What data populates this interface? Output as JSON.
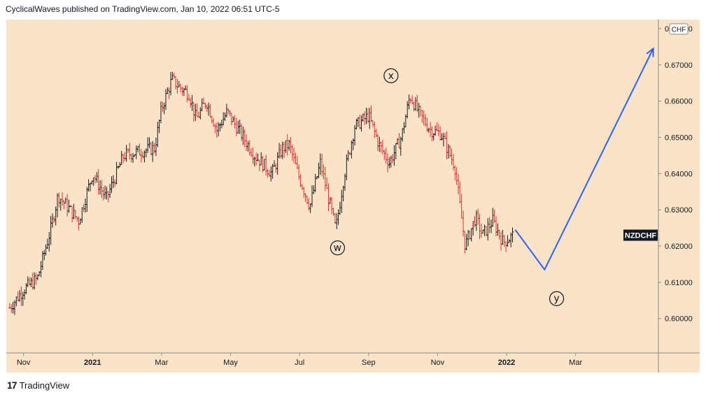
{
  "header": {
    "text": "CyclicalWaves published on TradingView.com, Jan 10, 2022 06:51 UTC-5"
  },
  "footer": {
    "logo_mark": "17",
    "logo_text": "TradingView"
  },
  "colors": {
    "background": "#fbe3c7",
    "up": "#131722",
    "down": "#d32f2f",
    "projection": "#2962ff",
    "axis_bg": "#ffffff"
  },
  "symbol_badge": "NZDCHF",
  "currency_badge": "CHF",
  "chart_data": {
    "type": "ohlc",
    "symbol": "NZDCHF",
    "x_tick_labels": [
      "Nov",
      "2021",
      "Mar",
      "May",
      "Jul",
      "Sep",
      "Nov",
      "2022",
      "Mar"
    ],
    "x_tick_months": [
      0,
      2,
      4,
      6,
      8,
      10,
      12,
      14,
      16
    ],
    "bold_x_ticks": [
      "2021",
      "2022"
    ],
    "y_tick_values": [
      0.6,
      0.61,
      0.62,
      0.63,
      0.64,
      0.65,
      0.66,
      0.67,
      0.68
    ],
    "y_tick_labels": [
      "0.60000",
      "0.61000",
      "0.62000",
      "0.63000",
      "0.64000",
      "0.65000",
      "0.66000",
      "0.67000",
      "0.68000"
    ],
    "ylim": [
      0.5905,
      0.6825
    ],
    "xlim_months": [
      -0.5,
      18.4
    ],
    "price_path_months": [
      -0.4,
      0.0,
      0.4,
      0.8,
      1.0,
      1.6,
      2.0,
      2.4,
      2.9,
      3.3,
      3.8,
      4.0,
      4.3,
      4.5,
      4.8,
      5.0,
      5.3,
      5.6,
      5.9,
      6.3,
      6.7,
      7.2,
      7.5,
      7.7,
      7.95,
      8.3,
      8.6,
      9.05,
      9.3,
      9.6,
      10.0,
      10.3,
      10.6,
      10.95,
      11.2,
      11.5,
      11.8,
      12.1,
      12.5,
      12.8,
      13.1,
      13.3,
      13.6,
      13.9,
      14.2
    ],
    "price_path_values": [
      0.603,
      0.608,
      0.611,
      0.625,
      0.634,
      0.627,
      0.64,
      0.633,
      0.645,
      0.646,
      0.647,
      0.658,
      0.666,
      0.664,
      0.662,
      0.655,
      0.66,
      0.652,
      0.657,
      0.651,
      0.645,
      0.64,
      0.647,
      0.648,
      0.64,
      0.631,
      0.643,
      0.6245,
      0.64,
      0.653,
      0.656,
      0.648,
      0.643,
      0.65,
      0.6615,
      0.656,
      0.652,
      0.651,
      0.642,
      0.62,
      0.628,
      0.623,
      0.627,
      0.621,
      0.623
    ],
    "projection": {
      "months": [
        14.25,
        15.1,
        18.25
      ],
      "values": [
        0.6245,
        0.6135,
        0.6745
      ]
    },
    "wave_labels": [
      {
        "text": "w",
        "month": 9.1,
        "value": 0.6195
      },
      {
        "text": "x",
        "month": 10.65,
        "value": 0.667
      },
      {
        "text": "y",
        "month": 15.45,
        "value": 0.6055
      }
    ]
  }
}
